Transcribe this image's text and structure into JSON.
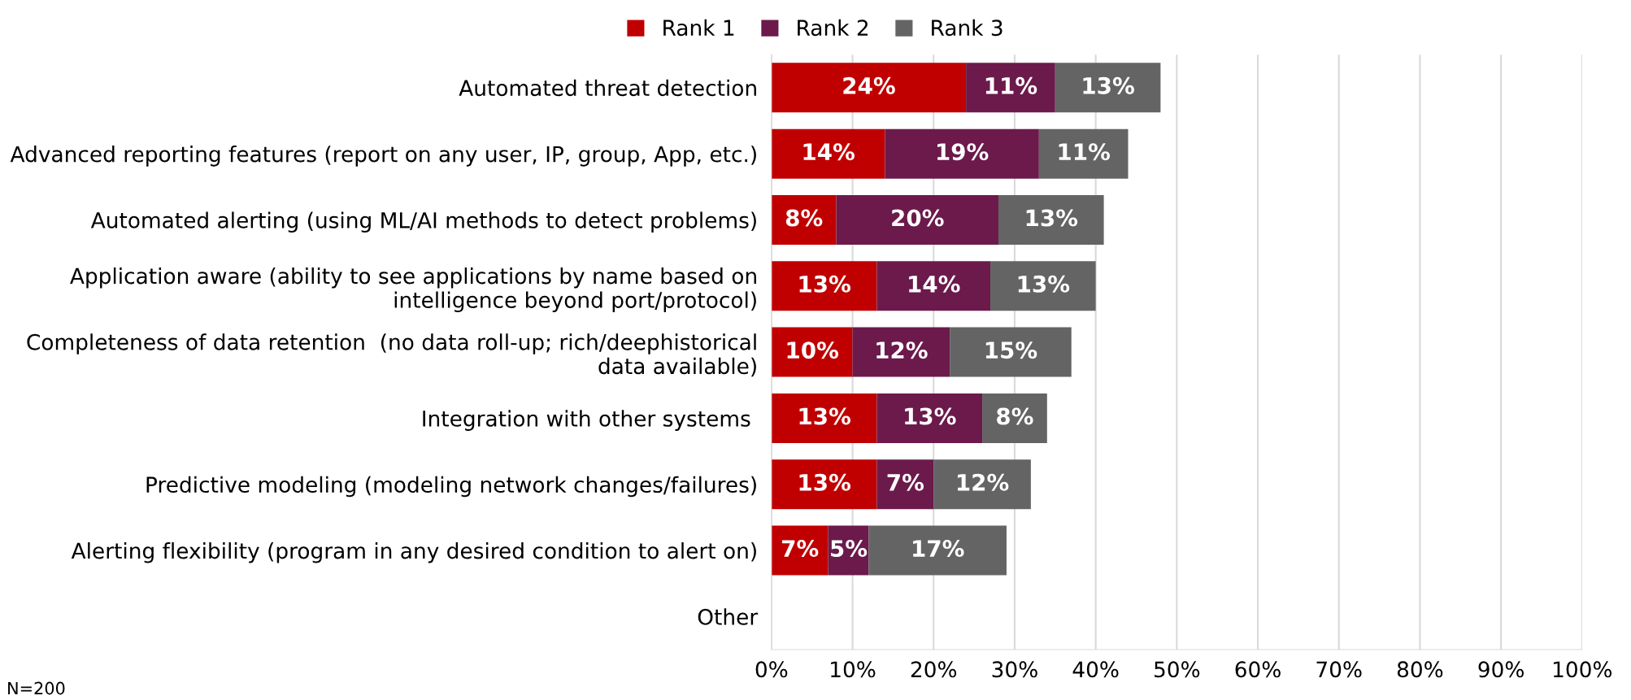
{
  "chart_data": {
    "type": "bar",
    "orientation": "horizontal",
    "stacked": true,
    "categories": [
      "Automated threat detection",
      "Advanced reporting features (report on any user, IP, group, App, etc.)",
      "Automated alerting (using ML/AI methods to detect problems)",
      "Application aware (ability to see applications by name based on\nintelligence beyond port/protocol)",
      "Completeness of data retention  (no data roll-up; rich/deephistorical\ndata available)",
      "Integration with other systems ",
      "Predictive modeling (modeling network changes/failures)",
      "Alerting flexibility (program in any desired condition to alert on)",
      "Other"
    ],
    "series": [
      {
        "name": "Rank 1",
        "color": "#c00000",
        "values": [
          24,
          14,
          8,
          13,
          10,
          13,
          13,
          7,
          0
        ],
        "value_labels": [
          "24%",
          "14%",
          "8%",
          "13%",
          "10%",
          "13%",
          "13%",
          "7%",
          null
        ]
      },
      {
        "name": "Rank 2",
        "color": "#6b1a4b",
        "values": [
          11,
          19,
          20,
          14,
          12,
          13,
          7,
          5,
          0
        ],
        "value_labels": [
          "11%",
          "19%",
          "20%",
          "14%",
          "12%",
          "13%",
          "7%",
          "5%",
          null
        ]
      },
      {
        "name": "Rank 3",
        "color": "#646464",
        "values": [
          13,
          11,
          13,
          13,
          15,
          8,
          12,
          17,
          0
        ],
        "value_labels": [
          "13%",
          "11%",
          "13%",
          "13%",
          "15%",
          "8%",
          "12%",
          "17%",
          null
        ]
      }
    ],
    "xlim": [
      0,
      100
    ],
    "xticks": [
      {
        "value": 0,
        "label": "0%"
      },
      {
        "value": 10,
        "label": "10%"
      },
      {
        "value": 20,
        "label": "20%"
      },
      {
        "value": 30,
        "label": "30%"
      },
      {
        "value": 40,
        "label": "40%"
      },
      {
        "value": 50,
        "label": "50%"
      },
      {
        "value": 60,
        "label": "60%"
      },
      {
        "value": 70,
        "label": "70%"
      },
      {
        "value": 80,
        "label": "80%"
      },
      {
        "value": 90,
        "label": "90%"
      },
      {
        "value": 100,
        "label": "100%"
      }
    ],
    "grid": "x",
    "legend": "top",
    "annotations": [
      "N=200"
    ]
  }
}
